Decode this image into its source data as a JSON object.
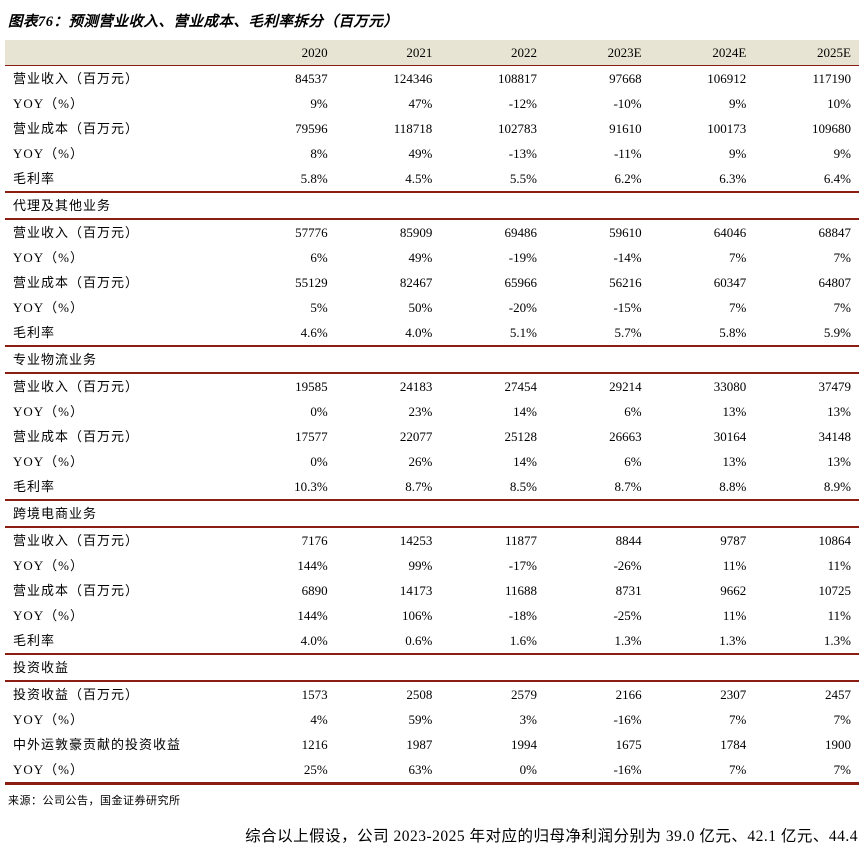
{
  "title": "图表76：预测营业收入、营业成本、毛利率拆分（百万元）",
  "source": "来源：公司公告，国金证券研究所",
  "closing_text": "综合以上假设，公司 2023-2025 年对应的归母净利润分别为 39.0 亿元、42.1 亿元、44.4",
  "colors": {
    "header_bg": "#e8e4d3",
    "rule": "#8b1e13",
    "text": "#000000"
  },
  "chart_data": {
    "type": "table",
    "title": "图表76：预测营业收入、营业成本、毛利率拆分（百万元）",
    "columns": [
      "",
      "2020",
      "2021",
      "2022",
      "2023E",
      "2024E",
      "2025E"
    ],
    "sections": [
      {
        "name": "",
        "rows": [
          {
            "label": "营业收入（百万元）",
            "values": [
              "84537",
              "124346",
              "108817",
              "97668",
              "106912",
              "117190"
            ]
          },
          {
            "label": "YOY（%）",
            "values": [
              "9%",
              "47%",
              "-12%",
              "-10%",
              "9%",
              "10%"
            ]
          },
          {
            "label": "营业成本（百万元）",
            "values": [
              "79596",
              "118718",
              "102783",
              "91610",
              "100173",
              "109680"
            ]
          },
          {
            "label": "YOY（%）",
            "values": [
              "8%",
              "49%",
              "-13%",
              "-11%",
              "9%",
              "9%"
            ]
          },
          {
            "label": "毛利率",
            "values": [
              "5.8%",
              "4.5%",
              "5.5%",
              "6.2%",
              "6.3%",
              "6.4%"
            ]
          }
        ]
      },
      {
        "name": "代理及其他业务",
        "rows": [
          {
            "label": "营业收入（百万元）",
            "values": [
              "57776",
              "85909",
              "69486",
              "59610",
              "64046",
              "68847"
            ]
          },
          {
            "label": "YOY（%）",
            "values": [
              "6%",
              "49%",
              "-19%",
              "-14%",
              "7%",
              "7%"
            ]
          },
          {
            "label": "营业成本（百万元）",
            "values": [
              "55129",
              "82467",
              "65966",
              "56216",
              "60347",
              "64807"
            ]
          },
          {
            "label": "YOY（%）",
            "values": [
              "5%",
              "50%",
              "-20%",
              "-15%",
              "7%",
              "7%"
            ]
          },
          {
            "label": "毛利率",
            "values": [
              "4.6%",
              "4.0%",
              "5.1%",
              "5.7%",
              "5.8%",
              "5.9%"
            ]
          }
        ]
      },
      {
        "name": "专业物流业务",
        "rows": [
          {
            "label": "营业收入（百万元）",
            "values": [
              "19585",
              "24183",
              "27454",
              "29214",
              "33080",
              "37479"
            ]
          },
          {
            "label": "YOY（%）",
            "values": [
              "0%",
              "23%",
              "14%",
              "6%",
              "13%",
              "13%"
            ]
          },
          {
            "label": "营业成本（百万元）",
            "values": [
              "17577",
              "22077",
              "25128",
              "26663",
              "30164",
              "34148"
            ]
          },
          {
            "label": "YOY（%）",
            "values": [
              "0%",
              "26%",
              "14%",
              "6%",
              "13%",
              "13%"
            ]
          },
          {
            "label": "毛利率",
            "values": [
              "10.3%",
              "8.7%",
              "8.5%",
              "8.7%",
              "8.8%",
              "8.9%"
            ]
          }
        ]
      },
      {
        "name": "跨境电商业务",
        "rows": [
          {
            "label": "营业收入（百万元）",
            "values": [
              "7176",
              "14253",
              "11877",
              "8844",
              "9787",
              "10864"
            ]
          },
          {
            "label": "YOY（%）",
            "values": [
              "144%",
              "99%",
              "-17%",
              "-26%",
              "11%",
              "11%"
            ]
          },
          {
            "label": "营业成本（百万元）",
            "values": [
              "6890",
              "14173",
              "11688",
              "8731",
              "9662",
              "10725"
            ]
          },
          {
            "label": "YOY（%）",
            "values": [
              "144%",
              "106%",
              "-18%",
              "-25%",
              "11%",
              "11%"
            ]
          },
          {
            "label": "毛利率",
            "values": [
              "4.0%",
              "0.6%",
              "1.6%",
              "1.3%",
              "1.3%",
              "1.3%"
            ]
          }
        ]
      },
      {
        "name": "投资收益",
        "rows": [
          {
            "label": "投资收益（百万元）",
            "values": [
              "1573",
              "2508",
              "2579",
              "2166",
              "2307",
              "2457"
            ]
          },
          {
            "label": "YOY（%）",
            "values": [
              "4%",
              "59%",
              "3%",
              "-16%",
              "7%",
              "7%"
            ]
          },
          {
            "label": "中外运敦豪贡献的投资收益",
            "values": [
              "1216",
              "1987",
              "1994",
              "1675",
              "1784",
              "1900"
            ]
          },
          {
            "label": "YOY（%）",
            "values": [
              "25%",
              "63%",
              "0%",
              "-16%",
              "7%",
              "7%"
            ]
          }
        ]
      }
    ]
  }
}
